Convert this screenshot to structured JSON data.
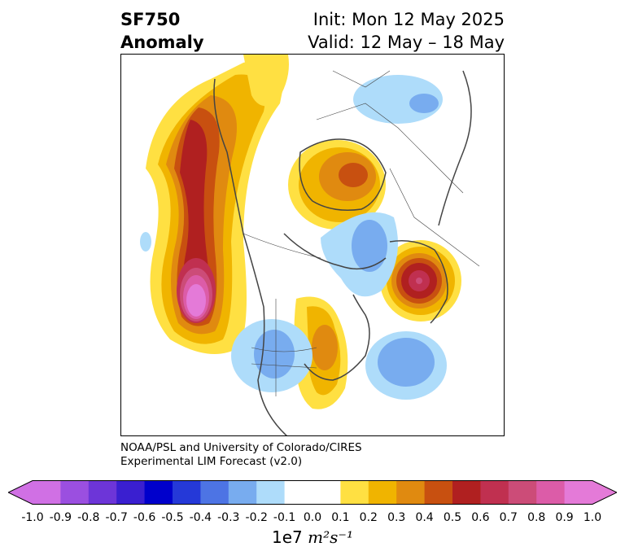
{
  "header": {
    "title_line1": "SF750",
    "title_line2": "Anomaly",
    "init_text": "Init: Mon 12 May 2025",
    "valid_text": "Valid: 12 May – 18 May"
  },
  "credit": {
    "line1": "NOAA/PSL and University of Colorado/CIRES",
    "line2": "Experimental LIM Forecast (v2.0)"
  },
  "colorbar": {
    "ticks": [
      "-1.0",
      "-0.9",
      "-0.8",
      "-0.7",
      "-0.6",
      "-0.5",
      "-0.4",
      "-0.3",
      "-0.2",
      "-0.1",
      "0.0",
      "0.1",
      "0.2",
      "0.3",
      "0.4",
      "0.5",
      "0.6",
      "0.7",
      "0.8",
      "0.9",
      "1.0"
    ],
    "colors": [
      "#9b4fe0",
      "#6d35d8",
      "#3a1fd0",
      "#0000cc",
      "#2539d8",
      "#4d74e4",
      "#78acef",
      "#aedcfa",
      "#ffffff",
      "#ffe042",
      "#f0b400",
      "#e08a10",
      "#c85010",
      "#b02020",
      "#c03050",
      "#cc4c78",
      "#dc5ca8"
    ],
    "under_color": "#d070e4",
    "over_color": "#e47ad8",
    "units_prefix": "1e7",
    "units_expr": "m²s⁻¹"
  },
  "map": {
    "projection": "polar-stereographic-north",
    "ocean_color": "#ffffff",
    "coast_color": "#444444"
  }
}
